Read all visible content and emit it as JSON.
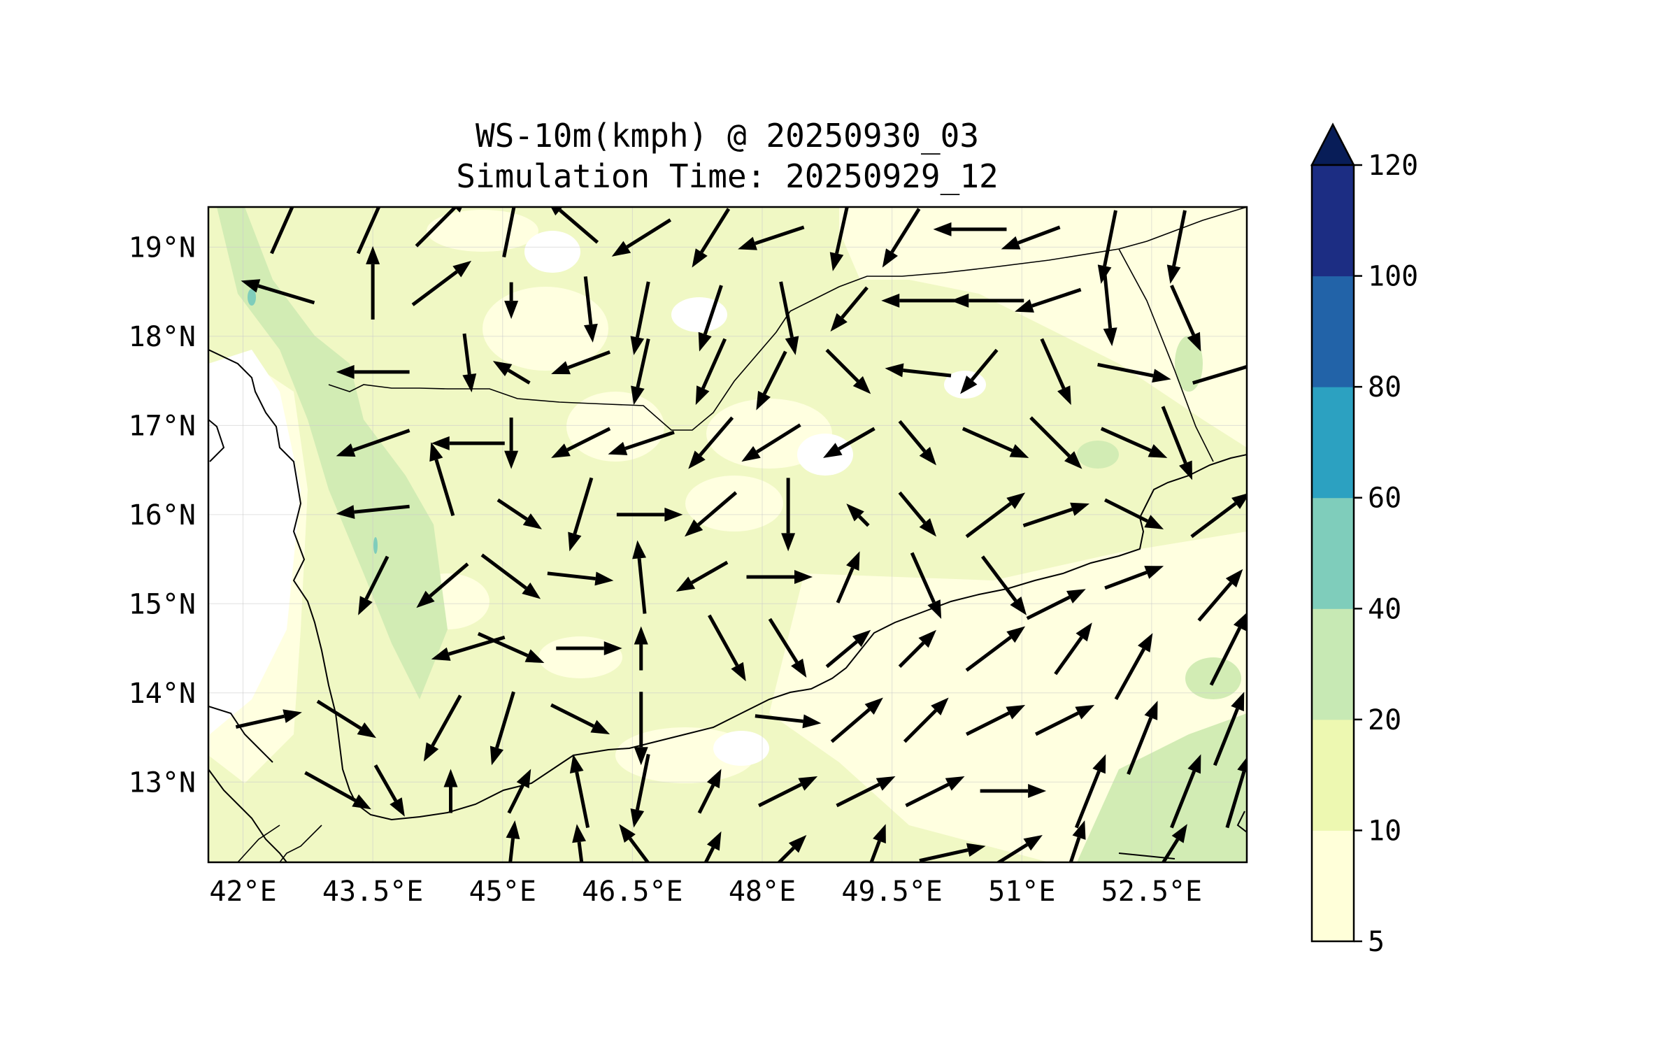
{
  "title": {
    "line1": "WS-10m(kmph) @ 20250930_03",
    "line2": "Simulation Time: 20250929_12"
  },
  "map": {
    "lon_range": [
      41.6,
      53.6
    ],
    "lat_range": [
      12.1,
      19.45
    ],
    "lon_ticks": [
      "42°E",
      "43.5°E",
      "45°E",
      "46.5°E",
      "48°E",
      "49.5°E",
      "51°E",
      "52.5°E"
    ],
    "lon_tick_values": [
      42,
      43.5,
      45,
      46.5,
      48,
      49.5,
      51,
      52.5
    ],
    "lat_ticks": [
      "19°N",
      "18°N",
      "17°N",
      "16°N",
      "15°N",
      "14°N",
      "13°N"
    ],
    "lat_tick_values": [
      19,
      18,
      17,
      16,
      15,
      14,
      13
    ],
    "colors": {
      "land_base": "#f0f8c4",
      "low_wind": "#ffffe0",
      "mid_wind": "#d2ecb4",
      "strong_wind": "#7fcdbb",
      "coast": "#000000",
      "arrow": "#000000"
    }
  },
  "colorbar": {
    "levels": [
      5,
      10,
      20,
      40,
      60,
      80,
      100,
      120
    ],
    "labels": [
      "5",
      "10",
      "20",
      "40",
      "60",
      "80",
      "100",
      "120"
    ],
    "colors": [
      "#ffffd9",
      "#edf8b1",
      "#c7e9b4",
      "#7fcdbb",
      "#2ca1c1",
      "#2263a8",
      "#1c2d83"
    ],
    "extend_color": "#081d58"
  },
  "wind_vectors": [
    [
      42.5,
      19.3,
      0.4,
      0.9
    ],
    [
      43.5,
      19.3,
      0.4,
      0.9
    ],
    [
      44.3,
      19.3,
      0.7,
      0.7
    ],
    [
      45.1,
      19.3,
      0.2,
      1.0
    ],
    [
      45.8,
      19.3,
      -0.7,
      0.6
    ],
    [
      46.6,
      19.1,
      -0.8,
      -0.5
    ],
    [
      47.4,
      19.1,
      -0.5,
      -0.8
    ],
    [
      48.1,
      19.1,
      -0.9,
      -0.3
    ],
    [
      48.9,
      19.1,
      -0.2,
      -0.9
    ],
    [
      49.6,
      19.1,
      -0.5,
      -0.8
    ],
    [
      50.4,
      19.2,
      -1.0,
      0
    ],
    [
      51.1,
      19.1,
      -0.8,
      -0.3
    ],
    [
      52.0,
      19.0,
      -0.2,
      -1.0
    ],
    [
      52.8,
      19.0,
      -0.2,
      -1.0
    ],
    [
      42.4,
      18.5,
      -1.0,
      0.3
    ],
    [
      43.5,
      18.6,
      0,
      1.0
    ],
    [
      44.3,
      18.6,
      0.8,
      0.6
    ],
    [
      45.1,
      18.4,
      0,
      -0.5
    ],
    [
      46.0,
      18.3,
      0.1,
      -0.9
    ],
    [
      46.6,
      18.2,
      -0.2,
      -1.0
    ],
    [
      47.4,
      18.2,
      -0.3,
      -0.9
    ],
    [
      48.3,
      18.2,
      0.2,
      -1.0
    ],
    [
      49.0,
      18.3,
      -0.5,
      -0.6
    ],
    [
      49.8,
      18.4,
      -1.0,
      0
    ],
    [
      50.6,
      18.4,
      -1.0,
      0
    ],
    [
      51.3,
      18.4,
      -0.9,
      -0.3
    ],
    [
      52.0,
      18.3,
      0.1,
      -1.0
    ],
    [
      52.9,
      18.2,
      0.4,
      -0.9
    ],
    [
      43.5,
      17.6,
      -1.0,
      0
    ],
    [
      44.6,
      17.7,
      0.1,
      -0.8
    ],
    [
      45.1,
      17.6,
      -0.5,
      0.3
    ],
    [
      45.9,
      17.7,
      -0.8,
      -0.3
    ],
    [
      46.6,
      17.6,
      -0.2,
      -0.9
    ],
    [
      47.4,
      17.6,
      -0.4,
      -0.9
    ],
    [
      48.1,
      17.5,
      -0.4,
      -0.8
    ],
    [
      49.0,
      17.6,
      0.6,
      -0.6
    ],
    [
      49.8,
      17.6,
      -0.9,
      0.1
    ],
    [
      50.5,
      17.6,
      -0.5,
      -0.6
    ],
    [
      51.4,
      17.6,
      0.4,
      -0.9
    ],
    [
      52.3,
      17.6,
      1.0,
      -0.2
    ],
    [
      53.4,
      17.6,
      1.0,
      0.3
    ],
    [
      44.6,
      16.8,
      -1.0,
      0
    ],
    [
      43.5,
      16.8,
      -1.0,
      -0.35
    ],
    [
      44.3,
      16.4,
      -0.3,
      1.0
    ],
    [
      45.1,
      16.8,
      0,
      -0.7
    ],
    [
      45.9,
      16.8,
      -0.8,
      -0.4
    ],
    [
      46.6,
      16.8,
      -0.9,
      -0.3
    ],
    [
      47.4,
      16.8,
      -0.6,
      -0.7
    ],
    [
      48.1,
      16.8,
      -0.8,
      -0.5
    ],
    [
      49.0,
      16.8,
      -0.7,
      -0.4
    ],
    [
      49.8,
      16.8,
      0.5,
      -0.6
    ],
    [
      50.7,
      16.8,
      0.9,
      -0.4
    ],
    [
      51.4,
      16.8,
      0.7,
      -0.7
    ],
    [
      52.3,
      16.8,
      0.9,
      -0.4
    ],
    [
      52.8,
      16.8,
      0.4,
      -1.0
    ],
    [
      43.5,
      16.05,
      -1.0,
      -0.1
    ],
    [
      45.2,
      16.0,
      0.6,
      -0.4
    ],
    [
      45.9,
      16.0,
      -0.3,
      -1.0
    ],
    [
      46.7,
      16.0,
      0.9,
      0
    ],
    [
      47.4,
      16.0,
      -0.7,
      -0.6
    ],
    [
      48.3,
      16.0,
      0,
      -1.0
    ],
    [
      49.1,
      16.0,
      -0.3,
      0.3
    ],
    [
      49.8,
      16.0,
      0.5,
      -0.6
    ],
    [
      50.7,
      16.0,
      0.8,
      0.6
    ],
    [
      51.4,
      16.0,
      0.9,
      0.3
    ],
    [
      52.3,
      16.0,
      0.8,
      -0.4
    ],
    [
      53.3,
      16.0,
      0.8,
      0.6
    ],
    [
      44.3,
      15.2,
      -0.7,
      -0.6
    ],
    [
      43.5,
      15.2,
      -0.4,
      -0.8
    ],
    [
      45.1,
      15.3,
      0.8,
      -0.6
    ],
    [
      45.9,
      15.3,
      0.9,
      -0.1
    ],
    [
      46.6,
      15.3,
      -0.1,
      1.0
    ],
    [
      47.3,
      15.3,
      -0.7,
      -0.4
    ],
    [
      48.2,
      15.3,
      0.9,
      0
    ],
    [
      49.0,
      15.3,
      0.3,
      0.7
    ],
    [
      49.9,
      15.2,
      0.4,
      -0.9
    ],
    [
      50.8,
      15.2,
      0.6,
      -0.8
    ],
    [
      51.4,
      15.0,
      0.8,
      0.4
    ],
    [
      52.3,
      15.3,
      0.8,
      0.3
    ],
    [
      53.3,
      15.1,
      0.6,
      0.7
    ],
    [
      44.6,
      14.5,
      -1.0,
      -0.3
    ],
    [
      45.1,
      14.5,
      0.9,
      -0.4
    ],
    [
      46.0,
      14.5,
      0.9,
      0
    ],
    [
      46.6,
      14.5,
      0,
      0.6
    ],
    [
      47.6,
      14.5,
      0.5,
      -0.9
    ],
    [
      48.3,
      14.5,
      0.5,
      -0.8
    ],
    [
      49.0,
      14.5,
      0.6,
      0.5
    ],
    [
      49.8,
      14.5,
      0.5,
      0.5
    ],
    [
      50.7,
      14.5,
      0.8,
      0.6
    ],
    [
      51.6,
      14.5,
      0.5,
      0.7
    ],
    [
      52.3,
      14.3,
      0.5,
      0.9
    ],
    [
      53.4,
      14.5,
      0.5,
      1.0
    ],
    [
      43.2,
      13.7,
      0.8,
      -0.5
    ],
    [
      42.3,
      13.7,
      0.9,
      0.2
    ],
    [
      44.3,
      13.6,
      -0.5,
      -0.9
    ],
    [
      45.0,
      13.6,
      -0.3,
      -1.0
    ],
    [
      45.9,
      13.7,
      0.8,
      -0.4
    ],
    [
      46.6,
      13.6,
      0,
      -1.0
    ],
    [
      48.3,
      13.7,
      0.9,
      -0.1
    ],
    [
      49.1,
      13.7,
      0.7,
      0.6
    ],
    [
      49.9,
      13.7,
      0.6,
      0.6
    ],
    [
      50.7,
      13.7,
      0.8,
      0.4
    ],
    [
      51.5,
      13.7,
      0.8,
      0.4
    ],
    [
      52.4,
      13.5,
      0.4,
      1.0
    ],
    [
      53.4,
      13.6,
      0.4,
      1.0
    ],
    [
      43.1,
      12.9,
      0.9,
      -0.5
    ],
    [
      43.7,
      12.9,
      0.4,
      -0.7
    ],
    [
      44.4,
      12.9,
      0,
      0.6
    ],
    [
      45.2,
      12.9,
      0.3,
      0.6
    ],
    [
      45.9,
      12.9,
      -0.2,
      1.0
    ],
    [
      46.6,
      12.9,
      -0.2,
      -1.0
    ],
    [
      47.4,
      12.9,
      0.3,
      0.6
    ],
    [
      48.3,
      12.9,
      0.8,
      0.4
    ],
    [
      49.2,
      12.9,
      0.8,
      0.4
    ],
    [
      50.0,
      12.9,
      0.8,
      0.4
    ],
    [
      50.9,
      12.9,
      0.9,
      0
    ],
    [
      51.8,
      12.9,
      0.4,
      1.0
    ],
    [
      52.9,
      12.9,
      0.4,
      1.0
    ],
    [
      53.5,
      12.9,
      0.3,
      1.0
    ],
    [
      45.1,
      12.2,
      0.1,
      0.9
    ],
    [
      45.9,
      12.2,
      -0.1,
      0.8
    ],
    [
      46.6,
      12.2,
      -0.6,
      0.8
    ],
    [
      47.4,
      12.2,
      0.3,
      0.6
    ],
    [
      48.3,
      12.2,
      0.5,
      0.5
    ],
    [
      49.3,
      12.2,
      0.3,
      0.8
    ],
    [
      50.2,
      12.2,
      0.9,
      0.2
    ],
    [
      50.9,
      12.2,
      0.8,
      0.5
    ],
    [
      51.6,
      12.2,
      0.3,
      0.9
    ],
    [
      52.7,
      12.2,
      0.5,
      0.8
    ]
  ]
}
